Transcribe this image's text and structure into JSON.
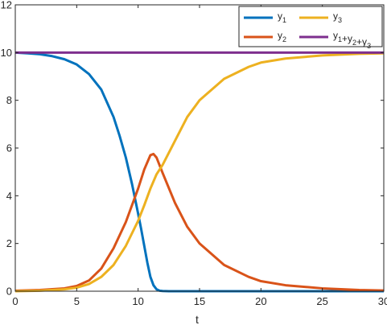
{
  "chart_data": {
    "type": "line",
    "title": "",
    "xlabel": "t",
    "ylabel": "",
    "xlim": [
      0,
      30
    ],
    "ylim": [
      0,
      12
    ],
    "xticks": [
      0,
      5,
      10,
      15,
      20,
      25,
      30
    ],
    "yticks": [
      0,
      2,
      4,
      6,
      8,
      10,
      12
    ],
    "xtick_labels": [
      "0",
      "5",
      "10",
      "15",
      "20",
      "25",
      "30"
    ],
    "ytick_labels": [
      "0",
      "2",
      "4",
      "6",
      "8",
      "10",
      "12"
    ],
    "grid": false,
    "legend_position": "top-right",
    "series": [
      {
        "name": "y1",
        "label_base": "y",
        "label_sub": "1",
        "color": "#0072BD",
        "x": [
          0,
          1,
          2,
          3,
          4,
          5,
          6,
          7,
          8,
          8.5,
          9,
          9.5,
          10,
          10.25,
          10.5,
          10.75,
          11,
          11.25,
          11.5,
          11.75,
          12,
          12.5,
          13,
          14,
          15,
          20,
          25,
          30
        ],
        "y": [
          10,
          9.97,
          9.93,
          9.85,
          9.72,
          9.5,
          9.1,
          8.45,
          7.3,
          6.5,
          5.6,
          4.5,
          3.25,
          2.6,
          1.9,
          1.2,
          0.6,
          0.25,
          0.08,
          0.02,
          0.01,
          0,
          0,
          0,
          0,
          0,
          0,
          0
        ]
      },
      {
        "name": "y2",
        "label_base": "y",
        "label_sub": "2",
        "color": "#D95319",
        "x": [
          0,
          2,
          4,
          5,
          6,
          7,
          8,
          9,
          10,
          10.5,
          11,
          11.25,
          11.5,
          12,
          13,
          14,
          15,
          17,
          19,
          20,
          22,
          25,
          28,
          30
        ],
        "y": [
          0.02,
          0.05,
          0.12,
          0.22,
          0.45,
          0.95,
          1.8,
          2.9,
          4.3,
          5.1,
          5.7,
          5.75,
          5.6,
          4.95,
          3.7,
          2.7,
          2.0,
          1.1,
          0.6,
          0.42,
          0.25,
          0.12,
          0.05,
          0.03
        ]
      },
      {
        "name": "y3",
        "label_base": "y",
        "label_sub": "3",
        "color": "#EDB120",
        "x": [
          0,
          2,
          4,
          5,
          6,
          7,
          8,
          9,
          10,
          10.5,
          11,
          11.5,
          12,
          13,
          14,
          15,
          17,
          19,
          20,
          22,
          25,
          28,
          30
        ],
        "y": [
          0,
          0.02,
          0.08,
          0.15,
          0.3,
          0.6,
          1.1,
          1.9,
          2.95,
          3.6,
          4.3,
          4.9,
          5.3,
          6.3,
          7.3,
          8.0,
          8.9,
          9.4,
          9.58,
          9.75,
          9.88,
          9.95,
          9.97
        ]
      },
      {
        "name": "y1+y2+y3",
        "label_base": "y",
        "label_sub": "1",
        "label_rest": "+y₂+y₃",
        "color": "#7E2F8E",
        "x": [
          0,
          30
        ],
        "y": [
          10,
          10
        ]
      }
    ],
    "legend_entries": [
      {
        "base": "y",
        "sub": "1",
        "parts": [
          [
            "y",
            "1"
          ]
        ]
      },
      {
        "base": "y",
        "sub": "3",
        "parts": [
          [
            "y",
            "3"
          ]
        ]
      },
      {
        "base": "y",
        "sub": "2",
        "parts": [
          [
            "y",
            "2"
          ]
        ]
      },
      {
        "parts": [
          [
            "y",
            "1"
          ],
          [
            "+y",
            "2"
          ],
          [
            "+y",
            "3"
          ]
        ]
      }
    ]
  }
}
